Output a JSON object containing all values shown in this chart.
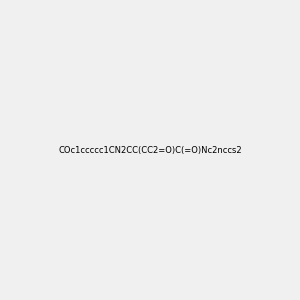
{
  "smiles": "COc1ccccc1CN2CC(CC2=O)C(=O)Nc2nccs2",
  "image_size": 300,
  "background_color": "#f0f0f0",
  "title": ""
}
